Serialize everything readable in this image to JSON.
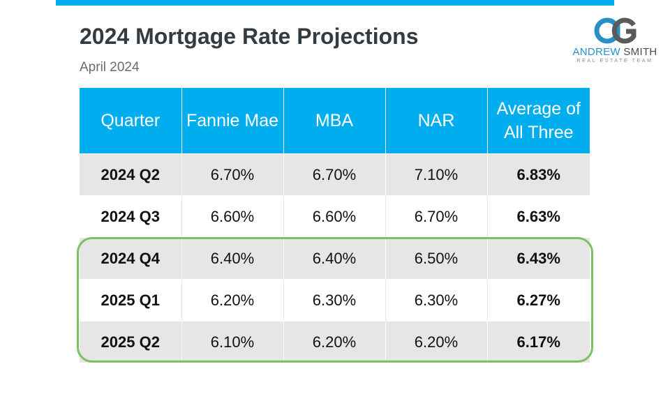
{
  "slide": {
    "title": "2024 Mortgage Rate Projections",
    "subtitle": "April 2024",
    "accent_color": "#00aeef",
    "highlight_color": "#7dc062"
  },
  "logo": {
    "first_name": "ANDREW",
    "last_name": "SMITH",
    "tagline": "REAL ESTATE TEAM",
    "mark_icon": "as-monogram-icon"
  },
  "table": {
    "headers": [
      "Quarter",
      "Fannie Mae",
      "MBA",
      "NAR",
      "Average of All Three"
    ],
    "rows": [
      {
        "quarter": "2024 Q2",
        "fannie_mae": "6.70%",
        "mba": "6.70%",
        "nar": "7.10%",
        "average": "6.83%"
      },
      {
        "quarter": "2024 Q3",
        "fannie_mae": "6.60%",
        "mba": "6.60%",
        "nar": "6.70%",
        "average": "6.63%"
      },
      {
        "quarter": "2024 Q4",
        "fannie_mae": "6.40%",
        "mba": "6.40%",
        "nar": "6.50%",
        "average": "6.43%"
      },
      {
        "quarter": "2025 Q1",
        "fannie_mae": "6.20%",
        "mba": "6.30%",
        "nar": "6.30%",
        "average": "6.27%"
      },
      {
        "quarter": "2025 Q2",
        "fannie_mae": "6.10%",
        "mba": "6.20%",
        "nar": "6.20%",
        "average": "6.17%"
      }
    ]
  }
}
